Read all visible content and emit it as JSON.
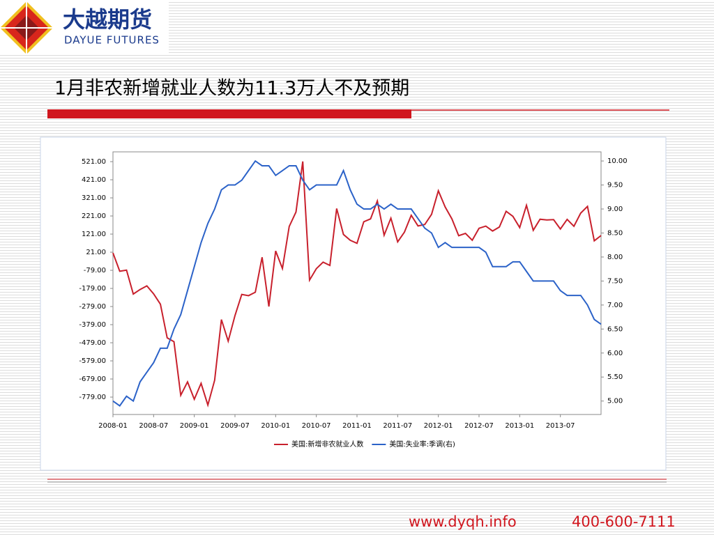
{
  "header": {
    "logo_cn": "大越期货",
    "logo_en": "DAYUE FUTURES",
    "title": "1月非农新增就业人数为11.3万人不及预期"
  },
  "chart_data": {
    "type": "line",
    "x": [
      "2008-01",
      "2008-02",
      "2008-03",
      "2008-04",
      "2008-05",
      "2008-06",
      "2008-07",
      "2008-08",
      "2008-09",
      "2008-10",
      "2008-11",
      "2008-12",
      "2009-01",
      "2009-02",
      "2009-03",
      "2009-04",
      "2009-05",
      "2009-06",
      "2009-07",
      "2009-08",
      "2009-09",
      "2009-10",
      "2009-11",
      "2009-12",
      "2010-01",
      "2010-02",
      "2010-03",
      "2010-04",
      "2010-05",
      "2010-06",
      "2010-07",
      "2010-08",
      "2010-09",
      "2010-10",
      "2010-11",
      "2010-12",
      "2011-01",
      "2011-02",
      "2011-03",
      "2011-04",
      "2011-05",
      "2011-06",
      "2011-07",
      "2011-08",
      "2011-09",
      "2011-10",
      "2011-11",
      "2011-12",
      "2012-01",
      "2012-02",
      "2012-03",
      "2012-04",
      "2012-05",
      "2012-06",
      "2012-07",
      "2012-08",
      "2012-09",
      "2012-10",
      "2012-11",
      "2012-12",
      "2013-01",
      "2013-02",
      "2013-03",
      "2013-04",
      "2013-05",
      "2013-06",
      "2013-07",
      "2013-08",
      "2013-09",
      "2013-10",
      "2013-11",
      "2013-12",
      "2014-01"
    ],
    "series": [
      {
        "name": "美国:新增非农就业人数",
        "color": "#c8202c",
        "values": [
          17,
          -84,
          -78,
          -210,
          -185,
          -165,
          -209,
          -266,
          -452,
          -473,
          -769,
          -695,
          -791,
          -703,
          -823,
          -686,
          -351,
          -470,
          -329,
          -212,
          -219,
          -200,
          -7,
          -279,
          28,
          -69,
          163,
          243,
          522,
          -133,
          -70,
          -34,
          -52,
          262,
          119,
          87,
          70,
          189,
          205,
          304,
          115,
          209,
          78,
          132,
          225,
          166,
          174,
          230,
          360,
          271,
          205,
          112,
          125,
          87,
          153,
          165,
          138,
          160,
          247,
          219,
          157,
          280,
          142,
          203,
          199,
          201,
          149,
          202,
          164,
          237,
          274,
          84,
          113
        ]
      },
      {
        "name": "美国:失业率:季调(右)",
        "color": "#2b62c8",
        "axis": "y2",
        "values": [
          5.0,
          4.9,
          5.1,
          5.0,
          5.4,
          5.6,
          5.8,
          6.1,
          6.1,
          6.5,
          6.8,
          7.3,
          7.8,
          8.3,
          8.7,
          9.0,
          9.4,
          9.5,
          9.5,
          9.6,
          9.8,
          10.0,
          9.9,
          9.9,
          9.7,
          9.8,
          9.9,
          9.9,
          9.6,
          9.4,
          9.5,
          9.5,
          9.5,
          9.5,
          9.8,
          9.4,
          9.1,
          9.0,
          9.0,
          9.1,
          9.0,
          9.1,
          9.0,
          9.0,
          9.0,
          8.8,
          8.6,
          8.5,
          8.2,
          8.3,
          8.2,
          8.2,
          8.2,
          8.2,
          8.2,
          8.1,
          7.8,
          7.8,
          7.8,
          7.9,
          7.9,
          7.7,
          7.5,
          7.5,
          7.5,
          7.5,
          7.3,
          7.2,
          7.2,
          7.2,
          7.0,
          6.7,
          6.6
        ]
      }
    ],
    "xticks": [
      "2008-01",
      "2008-07",
      "2009-01",
      "2009-07",
      "2010-01",
      "2010-07",
      "2011-01",
      "2011-07",
      "2012-01",
      "2012-07",
      "2013-01",
      "2013-07"
    ],
    "ylim": [
      -875,
      575
    ],
    "yticks": [
      {
        "value": 521,
        "label": "521.00"
      },
      {
        "value": 421,
        "label": "421.00"
      },
      {
        "value": 321,
        "label": "321.00"
      },
      {
        "value": 221,
        "label": "221.00"
      },
      {
        "value": 121,
        "label": "121.00"
      },
      {
        "value": 21,
        "label": "21.00"
      },
      {
        "value": -79,
        "label": "-79.00"
      },
      {
        "value": -179,
        "label": "-179.00"
      },
      {
        "value": -279,
        "label": "-279.00"
      },
      {
        "value": -379,
        "label": "-379.00"
      },
      {
        "value": -479,
        "label": "-479.00"
      },
      {
        "value": -579,
        "label": "-579.00"
      },
      {
        "value": -679,
        "label": "-679.00"
      },
      {
        "value": -779,
        "label": "-779.00"
      }
    ],
    "y2lim": [
      4.72,
      10.19
    ],
    "y2ticks": [
      {
        "value": 10,
        "label": "10.00"
      },
      {
        "value": 9.5,
        "label": "9.50"
      },
      {
        "value": 9,
        "label": "9.00"
      },
      {
        "value": 8.5,
        "label": "8.50"
      },
      {
        "value": 8,
        "label": "8.00"
      },
      {
        "value": 7.5,
        "label": "7.50"
      },
      {
        "value": 7,
        "label": "7.00"
      },
      {
        "value": 6.5,
        "label": "6.50"
      },
      {
        "value": 6,
        "label": "6.00"
      },
      {
        "value": 5.5,
        "label": "5.50"
      },
      {
        "value": 5,
        "label": "5.00"
      }
    ],
    "legend": "bottom"
  },
  "footer": {
    "url": "www.dyqh.info",
    "phone": "400-600-7111"
  }
}
